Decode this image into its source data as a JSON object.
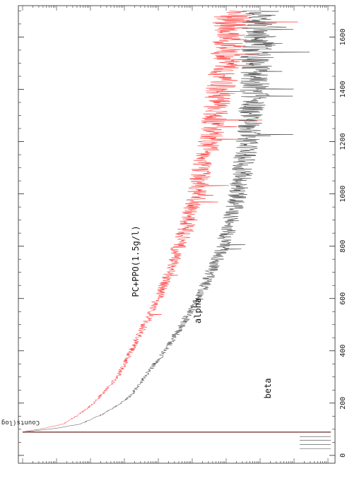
{
  "chart_data": {
    "type": "line",
    "orientation": "rotated-90-clockwise",
    "xlabel": "",
    "ylabel": "Counts(log scale)",
    "y_scale": "log",
    "xlim": [
      -30,
      1720
    ],
    "x_ticks": [
      0,
      200,
      400,
      600,
      800,
      1000,
      1200,
      1400,
      1600
    ],
    "annotations": [
      "PC+PPO(1.5g/l)",
      "alpha",
      "beta"
    ],
    "series": [
      {
        "name": "alpha",
        "color": "#ff2020",
        "points": [
          [
            90,
            0.0
          ],
          [
            100,
            0.5
          ],
          [
            120,
            1.2
          ],
          [
            160,
            1.7
          ],
          [
            200,
            2.1
          ],
          [
            250,
            2.45
          ],
          [
            300,
            2.8
          ],
          [
            400,
            3.2
          ],
          [
            500,
            3.6
          ],
          [
            600,
            4.0
          ],
          [
            700,
            4.3
          ],
          [
            800,
            4.6
          ],
          [
            900,
            4.9
          ],
          [
            1000,
            5.15
          ],
          [
            1100,
            5.3
          ],
          [
            1200,
            5.5
          ],
          [
            1300,
            5.7
          ],
          [
            1400,
            5.85
          ],
          [
            1500,
            6.0
          ],
          [
            1600,
            6.1
          ],
          [
            1700,
            6.2
          ]
        ]
      },
      {
        "name": "beta",
        "color": "#222222",
        "points": [
          [
            90,
            0.0
          ],
          [
            100,
            0.8
          ],
          [
            120,
            1.7
          ],
          [
            160,
            2.4
          ],
          [
            200,
            2.9
          ],
          [
            230,
            3.2
          ],
          [
            300,
            3.6
          ],
          [
            400,
            4.2
          ],
          [
            500,
            4.7
          ],
          [
            600,
            5.2
          ],
          [
            700,
            5.55
          ],
          [
            800,
            5.9
          ],
          [
            900,
            6.15
          ],
          [
            1000,
            6.35
          ],
          [
            1100,
            6.5
          ],
          [
            1200,
            6.65
          ],
          [
            1300,
            6.75
          ],
          [
            1400,
            6.85
          ],
          [
            1500,
            6.9
          ],
          [
            1600,
            6.95
          ],
          [
            1700,
            7.0
          ]
        ]
      }
    ]
  }
}
